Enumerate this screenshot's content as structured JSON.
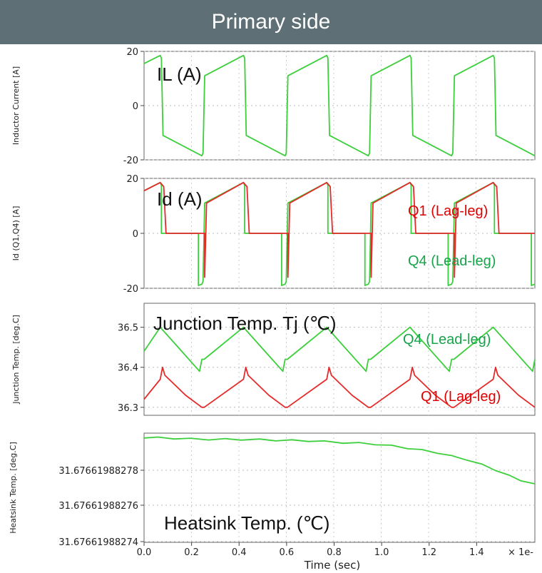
{
  "header": {
    "title": "Primary side"
  },
  "colors": {
    "header_bg": "#5e6f76",
    "green": "#3ccf3c",
    "red": "#e52a2a",
    "anno_green": "#16a34a",
    "anno_red": "#e00000"
  },
  "chart_data": [
    {
      "type": "line",
      "ylabel": "Inductor Current [A]",
      "ylim": [
        -20,
        20
      ],
      "yticks": [
        "20",
        "0",
        "-20"
      ],
      "grid": true,
      "annotations": [
        {
          "text": "IL (A)",
          "color": "#111111"
        }
      ],
      "series": [
        {
          "name": "",
          "color": "#3ccf3c",
          "x": [
            0,
            0.07,
            0.075,
            0.082,
            0.25,
            0.255,
            0.262,
            0.43,
            0.435,
            0.442,
            0.61,
            0.615,
            0.622,
            0.79,
            0.795,
            0.802,
            0.97,
            0.975,
            0.982,
            1.15,
            1.155,
            1.162,
            1.33,
            1.335,
            1.342,
            1.51,
            1.515,
            1.522,
            1.69
          ],
          "y": [
            15.5,
            18.5,
            17.5,
            -11,
            -18.5,
            -17.5,
            11,
            18.5,
            17.5,
            -11,
            -18.5,
            -17.5,
            11,
            18.5,
            17.5,
            -11,
            -18.5,
            -17.5,
            11,
            18.5,
            17.5,
            -11,
            -18.5,
            -17.5,
            11,
            18.5,
            17.5,
            -11,
            -18.5
          ]
        }
      ]
    },
    {
      "type": "line",
      "ylabel": "Id (Q1,Q4) [A]",
      "ylim": [
        -20,
        20
      ],
      "yticks": [
        "20",
        "0",
        "-20"
      ],
      "grid": true,
      "annotations": [
        {
          "text": "Id (A)",
          "color": "#111111"
        },
        {
          "text": "Q1 (Lag-leg)",
          "color": "#e00000"
        },
        {
          "text": "Q4 (Lead-leg)",
          "color": "#16a34a"
        }
      ],
      "series": [
        {
          "name": "Q4 (Lead-leg)",
          "color": "#3ccf3c",
          "x": [
            0,
            0.07,
            0.075,
            0.075,
            0.235,
            0.235,
            0.25,
            0.255,
            0.262,
            0.43,
            0.435,
            0.435,
            0.595,
            0.595,
            0.61,
            0.615,
            0.622,
            0.79,
            0.795,
            0.795,
            0.955,
            0.955,
            0.97,
            0.975,
            0.982,
            1.15,
            1.155,
            1.155,
            1.315,
            1.315,
            1.33,
            1.335,
            1.342,
            1.51,
            1.515,
            1.515,
            1.675,
            1.675,
            1.69
          ],
          "y": [
            15.5,
            18.5,
            17.5,
            0,
            0,
            -19,
            -18.5,
            -17.5,
            11,
            18.5,
            17.5,
            0,
            0,
            -19,
            -18.5,
            -17.5,
            11,
            18.5,
            17.5,
            0,
            0,
            -19,
            -18.5,
            -17.5,
            11,
            18.5,
            17.5,
            0,
            0,
            -19,
            -18.5,
            -17.5,
            11,
            18.5,
            17.5,
            0,
            0,
            -19,
            -18.5
          ]
        },
        {
          "name": "Q1 (Lag-leg)",
          "color": "#e52a2a",
          "x": [
            0,
            0.07,
            0.085,
            0.095,
            0.095,
            0.25,
            0.262,
            0.262,
            0.27,
            0.43,
            0.445,
            0.455,
            0.455,
            0.61,
            0.622,
            0.622,
            0.63,
            0.79,
            0.805,
            0.815,
            0.815,
            0.97,
            0.982,
            0.982,
            0.99,
            1.15,
            1.165,
            1.175,
            1.175,
            1.33,
            1.342,
            1.342,
            1.35,
            1.51,
            1.525,
            1.535,
            1.535,
            1.69
          ],
          "y": [
            15.5,
            18.5,
            17,
            0,
            0,
            0,
            0,
            -16,
            11,
            18.5,
            17,
            0,
            0,
            0,
            0,
            -16,
            11,
            18.5,
            17,
            0,
            0,
            0,
            0,
            -16,
            11,
            18.5,
            17,
            0,
            0,
            0,
            0,
            -16,
            11,
            18.5,
            17,
            0,
            0,
            0
          ]
        }
      ]
    },
    {
      "type": "line",
      "ylabel": "Junction Temp. [deg.C]",
      "ylim": [
        36.28,
        36.56
      ],
      "yticks": [
        "36.5",
        "36.4",
        "36.3"
      ],
      "grid": true,
      "annotations": [
        {
          "text": "Junction Temp. Tj (℃)",
          "color": "#111111"
        },
        {
          "text": "Q4 (Lead-leg)",
          "color": "#16a34a"
        },
        {
          "text": "Q1 (Lag-leg)",
          "color": "#e00000"
        }
      ],
      "series": [
        {
          "name": "Q4 (Lead-leg)",
          "color": "#3ccf3c",
          "x": [
            0,
            0.07,
            0.24,
            0.25,
            0.26,
            0.43,
            0.6,
            0.61,
            0.62,
            0.79,
            0.96,
            0.97,
            0.98,
            1.15,
            1.32,
            1.33,
            1.34,
            1.51,
            1.68,
            1.69
          ],
          "y": [
            36.44,
            36.5,
            36.39,
            36.42,
            36.42,
            36.5,
            36.39,
            36.42,
            36.42,
            36.5,
            36.39,
            36.42,
            36.42,
            36.5,
            36.39,
            36.42,
            36.42,
            36.5,
            36.39,
            36.42
          ]
        },
        {
          "name": "Q1 (Lag-leg)",
          "color": "#e52a2a",
          "x": [
            0,
            0.07,
            0.08,
            0.09,
            0.18,
            0.25,
            0.26,
            0.43,
            0.44,
            0.45,
            0.54,
            0.61,
            0.62,
            0.79,
            0.8,
            0.81,
            0.9,
            0.97,
            0.98,
            1.15,
            1.16,
            1.17,
            1.26,
            1.33,
            1.34,
            1.51,
            1.52,
            1.53,
            1.62,
            1.69
          ],
          "y": [
            36.32,
            36.37,
            36.4,
            36.38,
            36.33,
            36.3,
            36.3,
            36.37,
            36.4,
            36.38,
            36.33,
            36.3,
            36.3,
            36.37,
            36.4,
            36.38,
            36.33,
            36.3,
            36.3,
            36.37,
            36.4,
            36.38,
            36.33,
            36.3,
            36.3,
            36.37,
            36.4,
            36.38,
            36.33,
            36.3
          ]
        }
      ]
    },
    {
      "type": "line",
      "ylabel": "Heatsink Temp. [deg.C]",
      "ylim": [
        31.67661988274,
        31.676619882796
      ],
      "yticks": [
        "31.67661988278",
        "31.67661988276",
        "31.67661988274"
      ],
      "xticks": [
        "0.0",
        "0.2",
        "0.4",
        "0.6",
        "0.8",
        "1.0",
        "1.2",
        "1.4"
      ],
      "xlabel": "Time (sec)",
      "x_multiplier": "× 1e-",
      "grid": true,
      "annotations": [
        {
          "text": "Heatsink Temp. (℃)",
          "color": "#111111"
        }
      ],
      "series": [
        {
          "name": "",
          "color": "#3ccf3c",
          "x": [
            0,
            0.06,
            0.13,
            0.2,
            0.28,
            0.35,
            0.42,
            0.5,
            0.57,
            0.64,
            0.71,
            0.78,
            0.86,
            0.93,
            1.0,
            1.07,
            1.14,
            1.2,
            1.27,
            1.33,
            1.4,
            1.46,
            1.52,
            1.58,
            1.63,
            1.69
          ],
          "y": [
            31.6766198827935,
            31.676619882794,
            31.676619882793,
            31.6766198827934,
            31.6766198827925,
            31.6766198827932,
            31.6766198827924,
            31.676619882793,
            31.676619882792,
            31.6766198827926,
            31.6766198827917,
            31.676619882792,
            31.6766198827908,
            31.6766198827912,
            31.67661988279,
            31.6766198827898,
            31.676619882788,
            31.6766198827876,
            31.6766198827856,
            31.6766198827845,
            31.676619882782,
            31.6766198827802,
            31.6766198827768,
            31.6766198827744,
            31.6766198827715,
            31.67661988277
          ]
        }
      ]
    }
  ]
}
